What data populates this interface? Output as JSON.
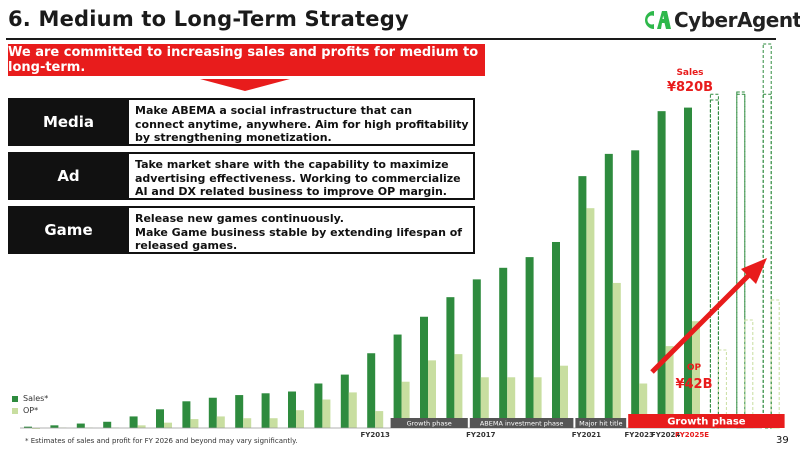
{
  "title": "6. Medium to Long-Term Strategy",
  "logo": {
    "text": "CyberAgent",
    "registered": "®"
  },
  "banner": "We are committed to increasing sales and profits for medium to long-term.",
  "strategies": [
    {
      "label": "Media",
      "lines": [
        "Make ABEMA a social infrastructure that can",
        "connect anytime, anywhere. Aim for high profitability",
        "by strengthening monetization."
      ]
    },
    {
      "label": "Ad",
      "lines": [
        "Take market share with the capability to maximize",
        "advertising effectiveness. Working to commercialize",
        "AI and DX related business to improve OP margin."
      ]
    },
    {
      "label": "Game",
      "lines": [
        "Release new games continuously.",
        "Make Game business stable by extending lifespan of",
        "released games."
      ]
    }
  ],
  "chart_data": {
    "type": "bar",
    "series": [
      {
        "name": "Sales*",
        "color": "#2e8b3e",
        "values": [
          1.5,
          3,
          5,
          7,
          13,
          21,
          30,
          34,
          37,
          39,
          41,
          50,
          60,
          84,
          105,
          125,
          147,
          167,
          180,
          192,
          209,
          283,
          308,
          312,
          356,
          360,
          375,
          375,
          375
        ]
      },
      {
        "name": "OP*",
        "color": "#c8dea0",
        "values": [
          -1,
          0.5,
          0.5,
          0.5,
          3,
          6,
          10,
          13,
          11,
          11,
          20,
          32,
          40,
          19,
          52,
          76,
          83,
          57,
          57,
          57,
          70,
          247,
          163,
          50,
          92,
          120,
          0,
          0,
          0
        ]
      }
    ],
    "projection_style": "dashed",
    "sales_label": "Sales",
    "sales_value": "¥820B",
    "op_label": "OP",
    "op_value": "¥42B",
    "x_labels": [
      {
        "label": "FY2013",
        "index": 13,
        "color": "#333333"
      },
      {
        "label": "FY2017",
        "index": 17,
        "color": "#333333"
      },
      {
        "label": "FY2021",
        "index": 21,
        "color": "#333333"
      },
      {
        "label": "FY2023",
        "index": 23,
        "color": "#333333"
      },
      {
        "label": "FY2024",
        "index": 24,
        "color": "#333333"
      },
      {
        "label": "FY2025E",
        "index": 25,
        "color": "#e81c1c"
      }
    ],
    "phases": [
      {
        "label": "Growth phase",
        "from": 14,
        "to": 17,
        "color": "#555555"
      },
      {
        "label": "ABEMA investment phase",
        "from": 17,
        "to": 21,
        "color": "#555555"
      },
      {
        "label": "Major hit title",
        "from": 21,
        "to": 23,
        "color": "#555555"
      },
      {
        "label": "Growth phase",
        "from": 23,
        "to": 29,
        "color": "#e81c1c"
      }
    ]
  },
  "legend": {
    "sales": "Sales*",
    "op": "OP*"
  },
  "footnote": "* Estimates of sales and profit for FY 2026 and beyond may vary significantly.",
  "page_number": "39"
}
